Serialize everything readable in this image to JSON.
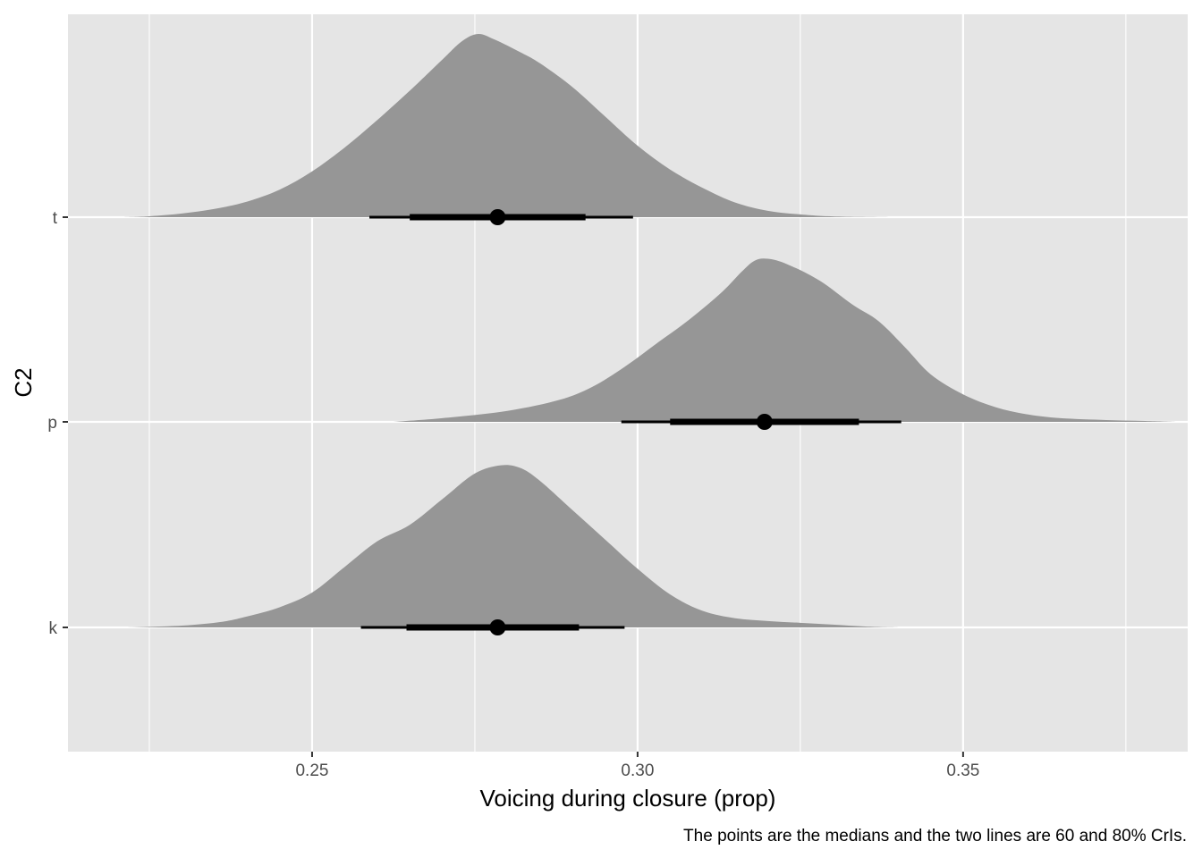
{
  "chart_data": {
    "type": "density",
    "xlabel": "Voicing during closure (prop)",
    "ylabel": "C2",
    "caption": "The points are the medians and the two lines are 60 and 80% CrIs.",
    "xlim": [
      0.2125,
      0.3845
    ],
    "x_ticks": [
      0.25,
      0.3,
      0.35
    ],
    "x_tick_labels": [
      "0.25",
      "0.30",
      "0.35"
    ],
    "x_minor_ticks": [
      0.225,
      0.275,
      0.325,
      0.375
    ],
    "categories": [
      "k",
      "p",
      "t"
    ],
    "grid": true,
    "colors": {
      "panel": "#e5e5e5",
      "grid": "#ffffff",
      "density": "#969696",
      "interval": "#000000"
    },
    "series": [
      {
        "category": "t",
        "median": 0.2785,
        "interval_60": [
          0.265,
          0.292
        ],
        "interval_80": [
          0.2588,
          0.2993
        ],
        "density": [
          [
            0.2208,
            0
          ],
          [
            0.225,
            0.005
          ],
          [
            0.23,
            0.02
          ],
          [
            0.235,
            0.045
          ],
          [
            0.24,
            0.085
          ],
          [
            0.245,
            0.15
          ],
          [
            0.25,
            0.25
          ],
          [
            0.255,
            0.38
          ],
          [
            0.26,
            0.53
          ],
          [
            0.265,
            0.69
          ],
          [
            0.27,
            0.86
          ],
          [
            0.273,
            0.96
          ],
          [
            0.2755,
            1.0
          ],
          [
            0.278,
            0.97
          ],
          [
            0.282,
            0.9
          ],
          [
            0.285,
            0.84
          ],
          [
            0.29,
            0.71
          ],
          [
            0.295,
            0.55
          ],
          [
            0.3,
            0.39
          ],
          [
            0.305,
            0.26
          ],
          [
            0.31,
            0.16
          ],
          [
            0.315,
            0.08
          ],
          [
            0.32,
            0.035
          ],
          [
            0.325,
            0.015
          ],
          [
            0.33,
            0.004
          ],
          [
            0.3385,
            0
          ]
        ]
      },
      {
        "category": "p",
        "median": 0.3195,
        "interval_60": [
          0.305,
          0.334
        ],
        "interval_80": [
          0.2975,
          0.3405
        ],
        "density": [
          [
            0.2625,
            0
          ],
          [
            0.27,
            0.02
          ],
          [
            0.28,
            0.06
          ],
          [
            0.288,
            0.12
          ],
          [
            0.293,
            0.19
          ],
          [
            0.298,
            0.3
          ],
          [
            0.303,
            0.43
          ],
          [
            0.308,
            0.56
          ],
          [
            0.313,
            0.71
          ],
          [
            0.316,
            0.82
          ],
          [
            0.318,
            0.88
          ],
          [
            0.32,
            0.89
          ],
          [
            0.323,
            0.86
          ],
          [
            0.328,
            0.77
          ],
          [
            0.333,
            0.64
          ],
          [
            0.337,
            0.55
          ],
          [
            0.341,
            0.41
          ],
          [
            0.345,
            0.26
          ],
          [
            0.35,
            0.15
          ],
          [
            0.355,
            0.08
          ],
          [
            0.36,
            0.04
          ],
          [
            0.365,
            0.02
          ],
          [
            0.372,
            0.01
          ],
          [
            0.378,
            0.005
          ],
          [
            0.383,
            0
          ]
        ]
      },
      {
        "category": "k",
        "median": 0.2785,
        "interval_60": [
          0.2645,
          0.291
        ],
        "interval_80": [
          0.2575,
          0.298
        ],
        "density": [
          [
            0.2213,
            0
          ],
          [
            0.23,
            0.01
          ],
          [
            0.236,
            0.03
          ],
          [
            0.24,
            0.06
          ],
          [
            0.245,
            0.11
          ],
          [
            0.25,
            0.19
          ],
          [
            0.255,
            0.33
          ],
          [
            0.26,
            0.47
          ],
          [
            0.265,
            0.56
          ],
          [
            0.27,
            0.7
          ],
          [
            0.275,
            0.84
          ],
          [
            0.279,
            0.885
          ],
          [
            0.282,
            0.87
          ],
          [
            0.285,
            0.8
          ],
          [
            0.29,
            0.64
          ],
          [
            0.295,
            0.48
          ],
          [
            0.3,
            0.32
          ],
          [
            0.305,
            0.18
          ],
          [
            0.31,
            0.09
          ],
          [
            0.315,
            0.05
          ],
          [
            0.32,
            0.035
          ],
          [
            0.325,
            0.025
          ],
          [
            0.33,
            0.015
          ],
          [
            0.335,
            0.005
          ],
          [
            0.3405,
            0
          ]
        ]
      }
    ]
  }
}
